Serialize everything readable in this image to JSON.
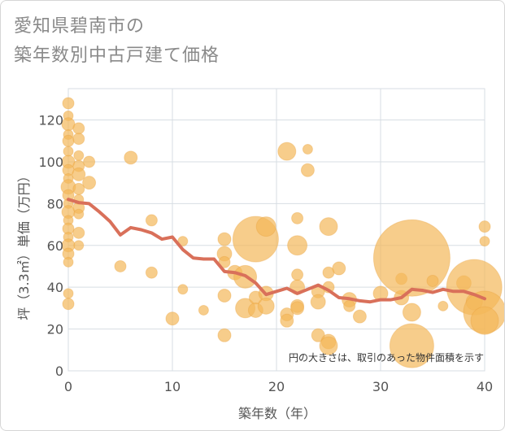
{
  "title": {
    "line1": "愛知県碧南市の",
    "line2": "築年数別中古戸建て価格"
  },
  "chart_data": {
    "type": "scatter",
    "title": "愛知県碧南市の築年数別中古戸建て価格",
    "xlabel": "築年数（年）",
    "ylabel": "坪（3.3㎡）単価（万円）",
    "xlim": [
      0,
      40
    ],
    "ylim": [
      0,
      135
    ],
    "xticks": [
      0,
      10,
      20,
      30,
      40
    ],
    "yticks": [
      0,
      20,
      40,
      60,
      80,
      100,
      120
    ],
    "grid": true,
    "annotation": "円の大きさは、取引のあった物件面積を示す",
    "colors": {
      "bubble": "#f3b85a",
      "line": "#d9705a",
      "grid": "#d7dde3"
    },
    "scatter_points": [
      {
        "x": 0,
        "y": 128,
        "s": 7
      },
      {
        "x": 0,
        "y": 122,
        "s": 6
      },
      {
        "x": 0,
        "y": 118,
        "s": 8
      },
      {
        "x": 0,
        "y": 113,
        "s": 6
      },
      {
        "x": 0,
        "y": 110,
        "s": 7
      },
      {
        "x": 0,
        "y": 105,
        "s": 6
      },
      {
        "x": 0,
        "y": 100,
        "s": 8
      },
      {
        "x": 0,
        "y": 96,
        "s": 7
      },
      {
        "x": 0,
        "y": 92,
        "s": 6
      },
      {
        "x": 0,
        "y": 88,
        "s": 9
      },
      {
        "x": 0,
        "y": 84,
        "s": 7
      },
      {
        "x": 0,
        "y": 80,
        "s": 6
      },
      {
        "x": 0,
        "y": 76,
        "s": 8
      },
      {
        "x": 0,
        "y": 72,
        "s": 6
      },
      {
        "x": 0,
        "y": 68,
        "s": 7
      },
      {
        "x": 0,
        "y": 64,
        "s": 6
      },
      {
        "x": 0,
        "y": 60,
        "s": 8
      },
      {
        "x": 0,
        "y": 56,
        "s": 7
      },
      {
        "x": 0,
        "y": 52,
        "s": 6
      },
      {
        "x": 0,
        "y": 37,
        "s": 6
      },
      {
        "x": 0,
        "y": 32,
        "s": 7
      },
      {
        "x": 1,
        "y": 116,
        "s": 7
      },
      {
        "x": 1,
        "y": 111,
        "s": 7
      },
      {
        "x": 1,
        "y": 103,
        "s": 6
      },
      {
        "x": 1,
        "y": 98,
        "s": 7
      },
      {
        "x": 1,
        "y": 94,
        "s": 8
      },
      {
        "x": 1,
        "y": 87,
        "s": 7
      },
      {
        "x": 1,
        "y": 82,
        "s": 6
      },
      {
        "x": 1,
        "y": 78,
        "s": 7
      },
      {
        "x": 1,
        "y": 75,
        "s": 6
      },
      {
        "x": 1,
        "y": 66,
        "s": 7
      },
      {
        "x": 1,
        "y": 60,
        "s": 6
      },
      {
        "x": 2,
        "y": 100,
        "s": 7
      },
      {
        "x": 2,
        "y": 90,
        "s": 8
      },
      {
        "x": 5,
        "y": 50,
        "s": 7
      },
      {
        "x": 6,
        "y": 102,
        "s": 8
      },
      {
        "x": 8,
        "y": 72,
        "s": 7
      },
      {
        "x": 8,
        "y": 47,
        "s": 7
      },
      {
        "x": 10,
        "y": 25,
        "s": 8
      },
      {
        "x": 11,
        "y": 62,
        "s": 6
      },
      {
        "x": 11,
        "y": 39,
        "s": 6
      },
      {
        "x": 13,
        "y": 29,
        "s": 6
      },
      {
        "x": 15,
        "y": 63,
        "s": 8
      },
      {
        "x": 15,
        "y": 56,
        "s": 9
      },
      {
        "x": 15,
        "y": 52,
        "s": 7
      },
      {
        "x": 15,
        "y": 36,
        "s": 8
      },
      {
        "x": 15,
        "y": 17,
        "s": 8
      },
      {
        "x": 16,
        "y": 47,
        "s": 9
      },
      {
        "x": 17,
        "y": 45,
        "s": 14
      },
      {
        "x": 17,
        "y": 30,
        "s": 12
      },
      {
        "x": 18,
        "y": 63,
        "s": 28
      },
      {
        "x": 18,
        "y": 35,
        "s": 8
      },
      {
        "x": 18,
        "y": 29,
        "s": 9
      },
      {
        "x": 19,
        "y": 69,
        "s": 12
      },
      {
        "x": 19,
        "y": 37,
        "s": 9
      },
      {
        "x": 19,
        "y": 31,
        "s": 10
      },
      {
        "x": 21,
        "y": 105,
        "s": 11
      },
      {
        "x": 21,
        "y": 27,
        "s": 8
      },
      {
        "x": 21,
        "y": 24,
        "s": 8
      },
      {
        "x": 22,
        "y": 73,
        "s": 7
      },
      {
        "x": 22,
        "y": 60,
        "s": 12
      },
      {
        "x": 22,
        "y": 46,
        "s": 7
      },
      {
        "x": 22,
        "y": 40,
        "s": 9
      },
      {
        "x": 22,
        "y": 31,
        "s": 8
      },
      {
        "x": 22,
        "y": 30,
        "s": 8
      },
      {
        "x": 23,
        "y": 106,
        "s": 6
      },
      {
        "x": 23,
        "y": 96,
        "s": 8
      },
      {
        "x": 24,
        "y": 38,
        "s": 8
      },
      {
        "x": 24,
        "y": 33,
        "s": 9
      },
      {
        "x": 24,
        "y": 17,
        "s": 8
      },
      {
        "x": 25,
        "y": 69,
        "s": 11
      },
      {
        "x": 25,
        "y": 47,
        "s": 7
      },
      {
        "x": 25,
        "y": 40,
        "s": 7
      },
      {
        "x": 25,
        "y": 14,
        "s": 9
      },
      {
        "x": 25,
        "y": 12,
        "s": 11
      },
      {
        "x": 26,
        "y": 49,
        "s": 8
      },
      {
        "x": 27,
        "y": 34,
        "s": 9
      },
      {
        "x": 27,
        "y": 31,
        "s": 7
      },
      {
        "x": 28,
        "y": 26,
        "s": 8
      },
      {
        "x": 30,
        "y": 37,
        "s": 9
      },
      {
        "x": 32,
        "y": 44,
        "s": 7
      },
      {
        "x": 32,
        "y": 35,
        "s": 9
      },
      {
        "x": 33,
        "y": 54,
        "s": 47
      },
      {
        "x": 33,
        "y": 12,
        "s": 27
      },
      {
        "x": 33,
        "y": 28,
        "s": 11
      },
      {
        "x": 35,
        "y": 43,
        "s": 7
      },
      {
        "x": 36,
        "y": 31,
        "s": 6
      },
      {
        "x": 38,
        "y": 42,
        "s": 9
      },
      {
        "x": 39,
        "y": 40,
        "s": 34
      },
      {
        "x": 39,
        "y": 33,
        "s": 10
      },
      {
        "x": 40,
        "y": 69,
        "s": 7
      },
      {
        "x": 40,
        "y": 62,
        "s": 6
      },
      {
        "x": 40,
        "y": 28,
        "s": 26
      },
      {
        "x": 40,
        "y": 24,
        "s": 17
      }
    ],
    "trend_line": {
      "x": [
        0,
        1,
        2,
        3,
        4,
        5,
        6,
        7,
        8,
        9,
        10,
        11,
        12,
        13,
        14,
        15,
        16,
        17,
        18,
        19,
        20,
        21,
        22,
        23,
        24,
        25,
        26,
        27,
        28,
        29,
        30,
        31,
        32,
        33,
        34,
        35,
        36,
        37,
        38,
        39,
        40
      ],
      "y": [
        82,
        80.5,
        80,
        76,
        71.5,
        65,
        68.5,
        67.5,
        66,
        63,
        64,
        58,
        54,
        53.5,
        53.5,
        47.5,
        47,
        45.5,
        42,
        36.5,
        38,
        39.5,
        37,
        39,
        41,
        38.5,
        35,
        34.5,
        33.5,
        33,
        34,
        34,
        35,
        39,
        38.5,
        37.5,
        39,
        38,
        38,
        36.5,
        34.5
      ]
    }
  }
}
